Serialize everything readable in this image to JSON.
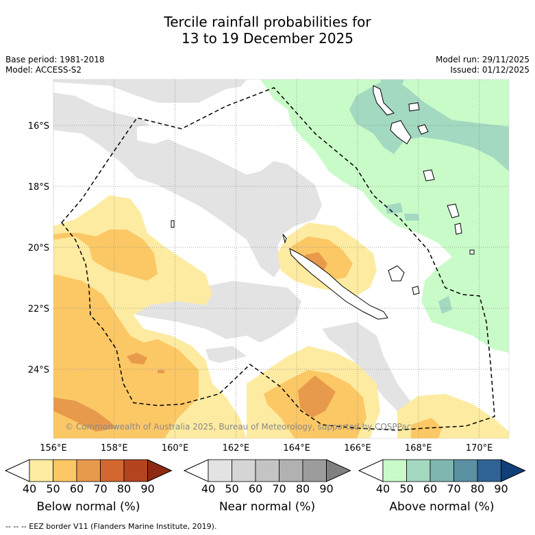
{
  "title_line1": "Tercile rainfall probabilities for",
  "title_line2": "13 to 19 December 2025",
  "base_period": "Base period: 1981-2018",
  "model": "Model: ACCESS-S2",
  "model_run": "Model run: 29/11/2025",
  "issued": "Issued: 01/12/2025",
  "map": {
    "lon_labels": [
      "156°E",
      "158°E",
      "160°E",
      "162°E",
      "164°E",
      "166°E",
      "168°E",
      "170°E"
    ],
    "lat_labels": [
      "16°S",
      "18°S",
      "20°S",
      "22°S",
      "24°S"
    ],
    "copyright": "© Commonwealth of Australia 2025, Bureau of Meteorology, supported by COSPPac",
    "colors": {
      "below": [
        "#fdeba1",
        "#fcc865",
        "#e89a4c",
        "#d2682f",
        "#b3441f",
        "#8c2a12"
      ],
      "near": [
        "#e3e3e3",
        "#d5d5d5",
        "#c4c4c4",
        "#b1b1b1",
        "#9c9c9c",
        "#808080"
      ],
      "above": [
        "#c9fbc9",
        "#a3d8c1",
        "#7fb7b0",
        "#5a91a3",
        "#2f6395",
        "#103f7a"
      ],
      "eez": "#000000"
    }
  },
  "colorbars": [
    {
      "title": "Below normal (%)",
      "ticks": [
        "40",
        "50",
        "60",
        "70",
        "80",
        "90"
      ],
      "palette": "below"
    },
    {
      "title": "Near normal (%)",
      "ticks": [
        "40",
        "50",
        "60",
        "70",
        "80",
        "90"
      ],
      "palette": "near"
    },
    {
      "title": "Above normal (%)",
      "ticks": [
        "40",
        "50",
        "60",
        "70",
        "80",
        "90"
      ],
      "palette": "above"
    }
  ],
  "footer": "--  --  -- EEZ border V11 (Flanders Marine Institute, 2019)."
}
